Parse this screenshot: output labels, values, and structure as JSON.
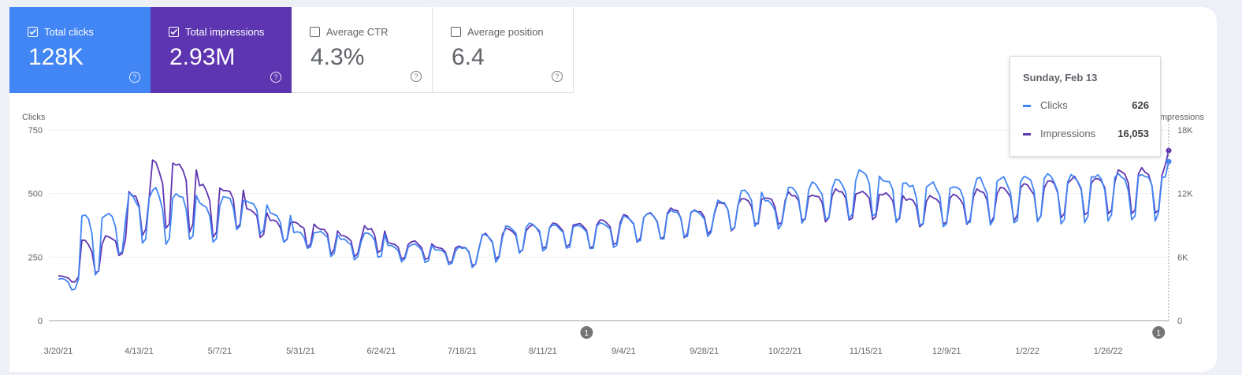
{
  "metrics": [
    {
      "label": "Total clicks",
      "value": "128K",
      "checked": true,
      "color": "#4285f4"
    },
    {
      "label": "Total impressions",
      "value": "2.93M",
      "checked": true,
      "color": "#5e35b1"
    },
    {
      "label": "Average CTR",
      "value": "4.3%",
      "checked": false
    },
    {
      "label": "Average position",
      "value": "6.4",
      "checked": false
    }
  ],
  "tooltip": {
    "date": "Sunday, Feb 13",
    "rows": [
      {
        "label": "Clicks",
        "value": "626",
        "color": "#4285f4"
      },
      {
        "label": "Impressions",
        "value": "16,053",
        "color": "#5e35b1"
      }
    ]
  },
  "annotations": [
    {
      "date": "8/24/21",
      "label": "1"
    },
    {
      "date": "2/10/22",
      "label": "1"
    }
  ],
  "chart_data": {
    "type": "line",
    "left_axis": {
      "label": "Clicks",
      "ticks": [
        "750",
        "500",
        "250",
        "0"
      ],
      "range": [
        0,
        750
      ]
    },
    "right_axis": {
      "label": "Impressions",
      "ticks": [
        "18K",
        "12K",
        "6K",
        "0"
      ],
      "range": [
        0,
        18000
      ]
    },
    "x_labels": [
      "3/20/21",
      "4/13/21",
      "5/7/21",
      "5/31/21",
      "6/24/21",
      "7/18/21",
      "8/11/21",
      "9/4/21",
      "9/28/21",
      "10/22/21",
      "11/15/21",
      "12/9/21",
      "1/2/22",
      "1/26/22"
    ],
    "date_range": [
      "3/20/21",
      "2/13/22"
    ],
    "grid": true,
    "series": [
      {
        "name": "Clicks",
        "color": "#4285f4",
        "axis": "left",
        "weekly_peaks": [
          165,
          420,
          420,
          500,
          515,
          500,
          465,
          490,
          470,
          420,
          350,
          350,
          320,
          345,
          295,
          300,
          280,
          290,
          340,
          370,
          380,
          375,
          375,
          385,
          410,
          420,
          435,
          430,
          470,
          510,
          470,
          530,
          540,
          560,
          590,
          560,
          540,
          545,
          530,
          560,
          560,
          570,
          570,
          575,
          570,
          575,
          578,
          560,
          540,
          560,
          575
        ],
        "weekly_troughs": [
          120,
          170,
          250,
          290,
          280,
          300,
          300,
          350,
          340,
          300,
          280,
          250,
          240,
          240,
          230,
          225,
          220,
          210,
          230,
          260,
          270,
          280,
          275,
          285,
          300,
          310,
          320,
          330,
          345,
          360,
          360,
          375,
          385,
          390,
          395,
          380,
          360,
          360,
          365,
          370,
          370,
          375,
          375,
          380,
          385,
          385,
          390,
          390,
          400,
          410,
          425
        ],
        "last": 626
      },
      {
        "name": "Impressions",
        "color": "#5e35b1",
        "axis": "right",
        "weekly_peaks": [
          4200,
          7600,
          8000,
          12000,
          15000,
          14800,
          12800,
          12500,
          10500,
          9500,
          9300,
          8800,
          8000,
          8800,
          7400,
          7500,
          7000,
          7000,
          8200,
          8700,
          9000,
          9100,
          9100,
          9500,
          9900,
          10200,
          10500,
          10400,
          11200,
          11600,
          11600,
          12000,
          11900,
          12300,
          12200,
          12000,
          11500,
          11800,
          11900,
          12300,
          12700,
          12900,
          13300,
          13500,
          13600,
          14000,
          14200,
          14500,
          13800,
          14200,
          15500
        ],
        "weekly_troughs": [
          3600,
          4200,
          6100,
          8000,
          8500,
          8200,
          7800,
          8300,
          7800,
          7200,
          6800,
          6200,
          6000,
          6200,
          5800,
          5600,
          5300,
          5100,
          5800,
          6300,
          6600,
          6800,
          6800,
          7000,
          7300,
          7600,
          7800,
          8100,
          8500,
          8900,
          9000,
          9200,
          9300,
          9400,
          9500,
          9300,
          8800,
          8900,
          9000,
          9200,
          9300,
          9400,
          9500,
          9600,
          9700,
          9800,
          9900,
          10000,
          10100,
          10300,
          10800
        ],
        "last": 16053
      }
    ]
  }
}
